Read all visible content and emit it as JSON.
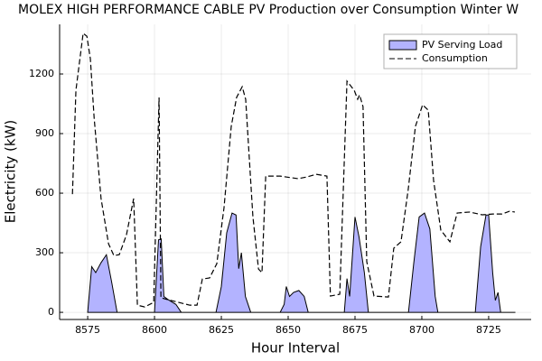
{
  "chart_data": {
    "type": "area-line",
    "title": "MOLEX HIGH PERFORMANCE CABLE PV Production over Consumption Winter W",
    "x_label": "Hour Interval",
    "y_label": "Electricity (kW)",
    "xlim": [
      8564.5,
      8740.9
    ],
    "ylim": [
      -36,
      1450
    ],
    "xticks": [
      8575,
      8600,
      8625,
      8650,
      8675,
      8700,
      8725
    ],
    "yticks": [
      0,
      300,
      600,
      900,
      1200
    ],
    "grid": true,
    "legend": "top-right",
    "series": [
      {
        "name": "PV Serving Load",
        "kind": "area",
        "color": "#b3b3ff",
        "x": [
          8575,
          8576.5,
          8578,
          8580,
          8582,
          8584,
          8586,
          8600,
          8601.5,
          8602.5,
          8603.5,
          8605,
          8608,
          8610,
          8623,
          8625,
          8627,
          8629,
          8630.5,
          8631.5,
          8632.5,
          8634,
          8636,
          8647,
          8648.5,
          8649.3,
          8650.5,
          8652,
          8654,
          8656,
          8657.5,
          8671,
          8672,
          8673,
          8675,
          8676.5,
          8678.5,
          8680,
          8695,
          8697,
          8699,
          8701,
          8703,
          8705,
          8706,
          8720,
          8722,
          8724,
          8725,
          8726.5,
          8727.5,
          8728.5,
          8729.5,
          8735
        ],
        "values": [
          0,
          230,
          200,
          250,
          290,
          150,
          0,
          0,
          365,
          370,
          80,
          65,
          40,
          0,
          0,
          130,
          400,
          500,
          490,
          220,
          300,
          80,
          0,
          0,
          40,
          130,
          80,
          100,
          110,
          80,
          0,
          0,
          170,
          80,
          480,
          380,
          200,
          0,
          0,
          250,
          480,
          500,
          420,
          80,
          0,
          0,
          330,
          490,
          490,
          200,
          60,
          100,
          0,
          0
        ]
      },
      {
        "name": "Consumption",
        "kind": "dashed-line",
        "color": "#000000",
        "x": [
          8569.3,
          8570.6,
          8573.3,
          8574.7,
          8576,
          8577.4,
          8580,
          8582.8,
          8584.8,
          8586.8,
          8589.5,
          8592.2,
          8593.6,
          8596.3,
          8599.7,
          8601.7,
          8602.4,
          8606.4,
          8613.2,
          8615.9,
          8617.9,
          8620.6,
          8623.3,
          8626,
          8628.7,
          8630.7,
          8632.8,
          8634.1,
          8636.8,
          8638.9,
          8640.2,
          8641.6,
          8647,
          8653.7,
          8657.1,
          8660.5,
          8664.5,
          8665.8,
          8669.3,
          8672,
          8674.7,
          8676,
          8676.7,
          8678,
          8679.4,
          8682.1,
          8687.5,
          8689.5,
          8692.2,
          8694.9,
          8697.6,
          8700.3,
          8702.4,
          8704.4,
          8707.1,
          8710.5,
          8713.2,
          8717.9,
          8722.6,
          8726.6,
          8730,
          8732.8,
          8734.8
        ],
        "values": [
          595,
          1118,
          1405,
          1390,
          1277,
          982,
          573,
          345,
          286,
          290,
          390,
          573,
          36,
          27,
          50,
          1082,
          73,
          59,
          36,
          36,
          168,
          173,
          245,
          527,
          936,
          1082,
          1136,
          1073,
          482,
          218,
          200,
          686,
          686,
          673,
          682,
          695,
          686,
          82,
          91,
          1164,
          1118,
          1073,
          1095,
          1036,
          255,
          82,
          77,
          323,
          355,
          618,
          936,
          1045,
          1018,
          664,
          414,
          355,
          500,
          505,
          491,
          495,
          495,
          509,
          505
        ]
      }
    ]
  }
}
